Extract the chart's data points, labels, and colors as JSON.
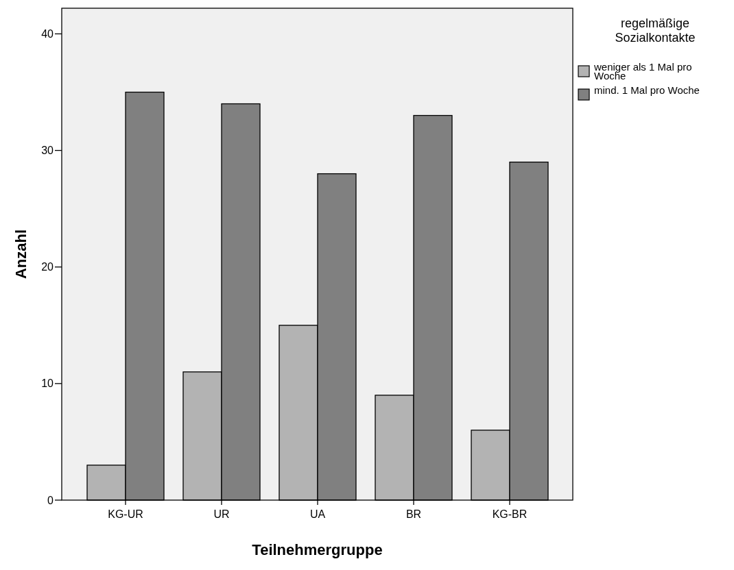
{
  "chart_data": {
    "type": "bar",
    "xlabel": "Teilnehmergruppe",
    "ylabel": "Anzahl",
    "legend_title": "regelmäßige Sozialkontakte",
    "categories": [
      "KG-UR",
      "UR",
      "UA",
      "BR",
      "KG-BR"
    ],
    "series": [
      {
        "name": "weniger als 1 Mal pro Woche",
        "color": "#b3b3b3",
        "values": [
          3,
          11,
          15,
          9,
          6
        ]
      },
      {
        "name": "mind. 1 Mal pro Woche",
        "color": "#808080",
        "values": [
          35,
          34,
          28,
          33,
          29
        ]
      }
    ],
    "ylim": [
      0,
      42.2
    ],
    "yticks": [
      0,
      10,
      20,
      30,
      40
    ],
    "grid": false,
    "legend": "top right"
  }
}
